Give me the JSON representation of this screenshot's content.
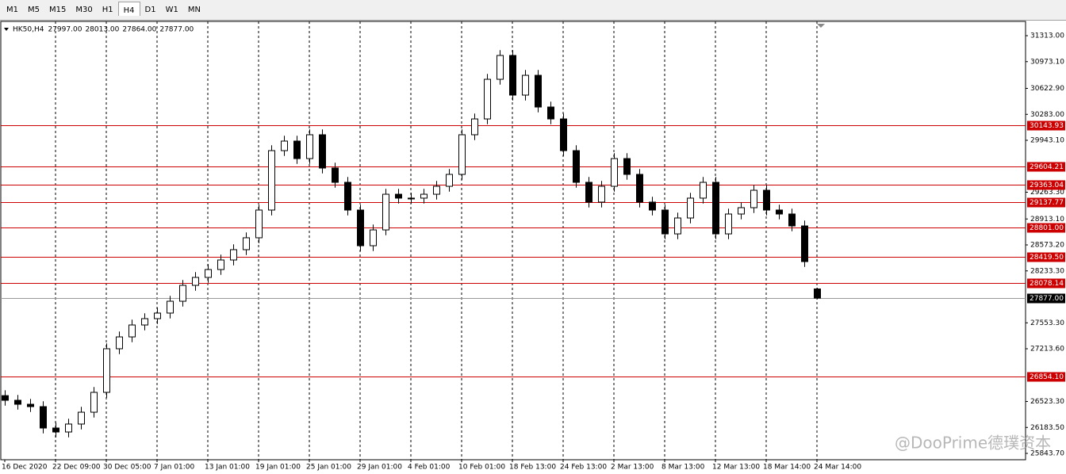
{
  "toolbar": {
    "tabs": [
      "M1",
      "M5",
      "M15",
      "M30",
      "H1",
      "H4",
      "D1",
      "W1",
      "MN"
    ],
    "active": "H4"
  },
  "chart_data": {
    "type": "candlestick",
    "symbol": "HK50,H4",
    "header_values": [
      "27997.00",
      "28013.00",
      "27864.00",
      "27877.00"
    ],
    "watermark": "@DooPrime德璞资本",
    "categories": [
      "16 Dec 2020",
      null,
      null,
      null,
      "22 Dec 09:00",
      null,
      null,
      null,
      "30 Dec 05:00",
      null,
      null,
      null,
      "7 Jan 01:00",
      null,
      null,
      null,
      "13 Jan 01:00",
      null,
      null,
      null,
      "19 Jan 01:00",
      null,
      null,
      null,
      "25 Jan 01:00",
      null,
      null,
      null,
      "29 Jan 01:00",
      null,
      null,
      null,
      "4 Feb 01:00",
      null,
      null,
      null,
      "10 Feb 01:00",
      null,
      null,
      null,
      "18 Feb 13:00",
      null,
      null,
      null,
      "24 Feb 13:00",
      null,
      null,
      null,
      "2 Mar 13:00",
      null,
      null,
      null,
      "8 Mar 13:00",
      null,
      null,
      null,
      "12 Mar 13:00",
      null,
      null,
      null,
      "18 Mar 14:00",
      null,
      null,
      null,
      "24 Mar 14:00"
    ],
    "open": [
      26600,
      26539,
      26487,
      26456,
      26176,
      26124,
      26228,
      26383,
      26643,
      27214,
      27369,
      27525,
      27608,
      27681,
      27836,
      28044,
      28148,
      28251,
      28376,
      28511,
      28667,
      29030,
      29808,
      29933,
      29704,
      30016,
      29580,
      29393,
      29030,
      28563,
      28770,
      29237,
      29186,
      29186,
      29237,
      29341,
      29497,
      30016,
      30223,
      30742,
      31054,
      30535,
      30794,
      30379,
      30223,
      29808,
      29393,
      29134,
      29341,
      29704,
      29497,
      29134,
      29030,
      28718,
      28926,
      29186,
      29393,
      28718,
      28978,
      29061,
      29289,
      29030,
      28978,
      28822,
      27997
    ],
    "high": [
      26670,
      26609,
      26557,
      26526,
      26246,
      26298,
      26453,
      26713,
      27284,
      27439,
      27595,
      27678,
      27751,
      27906,
      28114,
      28218,
      28321,
      28446,
      28581,
      28737,
      29100,
      29878,
      30003,
      30003,
      30086,
      30086,
      29650,
      29463,
      29100,
      28840,
      29307,
      29307,
      29256,
      29307,
      29411,
      29567,
      30086,
      30293,
      30812,
      31124,
      31124,
      30864,
      30864,
      30449,
      30293,
      29878,
      29463,
      29411,
      29774,
      29774,
      29567,
      29204,
      29100,
      28996,
      29256,
      29463,
      29463,
      29048,
      29131,
      29359,
      29359,
      29100,
      29048,
      28892,
      28013
    ],
    "low": [
      26469,
      26417,
      26386,
      26106,
      26054,
      26054,
      26158,
      26313,
      26573,
      27144,
      27299,
      27455,
      27538,
      27611,
      27766,
      27974,
      28078,
      28181,
      28306,
      28441,
      28597,
      28960,
      29738,
      29634,
      29634,
      29510,
      29323,
      28960,
      28493,
      28493,
      28700,
      29116,
      29116,
      29116,
      29167,
      29271,
      29427,
      29946,
      30153,
      30672,
      30465,
      30465,
      30309,
      30153,
      29738,
      29323,
      29064,
      29064,
      29271,
      29427,
      29064,
      28960,
      28648,
      28648,
      28856,
      29116,
      28648,
      28648,
      28908,
      28991,
      28960,
      28908,
      28752,
      28285,
      27864
    ],
    "close": [
      26539,
      26487,
      26456,
      26176,
      26124,
      26228,
      26383,
      26643,
      27214,
      27369,
      27525,
      27608,
      27681,
      27836,
      28044,
      28148,
      28251,
      28376,
      28511,
      28667,
      29030,
      29808,
      29933,
      29704,
      30016,
      29580,
      29393,
      29030,
      28563,
      28770,
      29237,
      29186,
      29186,
      29237,
      29341,
      29497,
      30016,
      30223,
      30742,
      31054,
      30535,
      30794,
      30379,
      30223,
      29808,
      29393,
      29134,
      29341,
      29704,
      29497,
      29134,
      29030,
      28718,
      28926,
      29186,
      29393,
      28718,
      28978,
      29061,
      29289,
      29030,
      28978,
      28822,
      28355,
      27877
    ],
    "up_color": "#ffffff",
    "down_color": "#000000",
    "wick_color": "#000000",
    "ylim": [
      25760.7,
      31500
    ],
    "yticks": [
      {
        "value": 31313,
        "label": "31313.00"
      },
      {
        "value": 30973.1,
        "label": "30973.10"
      },
      {
        "value": 30622.9,
        "label": "30622.90"
      },
      {
        "value": 30283,
        "label": "30283.00"
      },
      {
        "value": 29943.1,
        "label": "29943.10"
      },
      {
        "value": 29263.3,
        "label": "29263.30"
      },
      {
        "value": 28913.1,
        "label": "28913.10"
      },
      {
        "value": 28573.2,
        "label": "28573.20"
      },
      {
        "value": 28233.3,
        "label": "28233.30"
      },
      {
        "value": 27553.3,
        "label": "27553.30"
      },
      {
        "value": 27213.6,
        "label": "27213.60"
      },
      {
        "value": 26523.3,
        "label": "26523.30"
      },
      {
        "value": 26183.5,
        "label": "26183.50"
      },
      {
        "value": 25843.7,
        "label": "25843.70"
      }
    ],
    "levels": [
      {
        "value": 30143.93,
        "label": "30143.93"
      },
      {
        "value": 29604.21,
        "label": "29604.21"
      },
      {
        "value": 29363.04,
        "label": "29363.04"
      },
      {
        "value": 29137.77,
        "label": "29137.77"
      },
      {
        "value": 28801,
        "label": "28801.00"
      },
      {
        "value": 28419.5,
        "label": "28419.50"
      },
      {
        "value": 28078.14,
        "label": "28078.14"
      },
      {
        "value": 26854.1,
        "label": "26854.10"
      }
    ],
    "level_color": "#cc0000",
    "current_price": {
      "value": 27877,
      "label": "27877.00"
    },
    "grid": true
  }
}
